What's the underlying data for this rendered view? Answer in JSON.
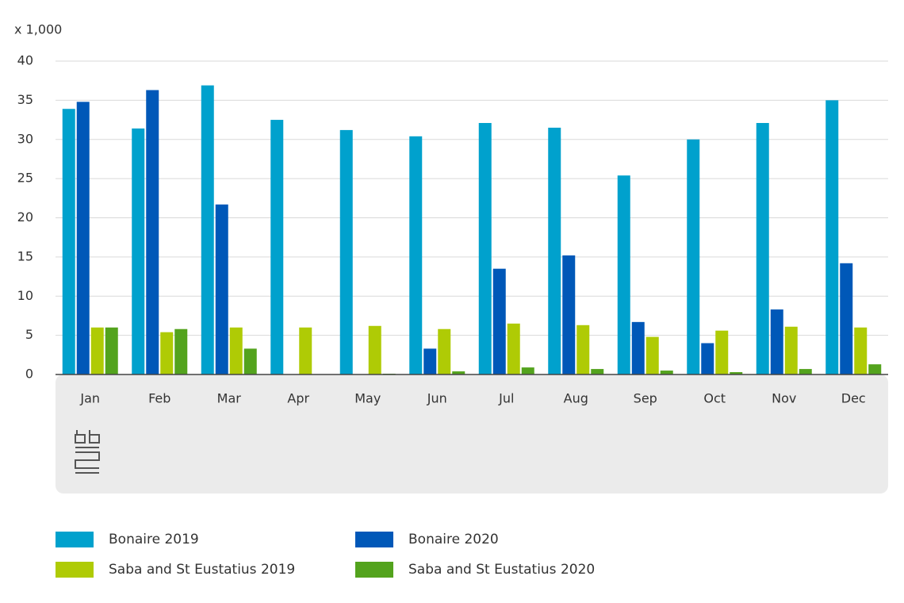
{
  "chart_data": {
    "type": "bar",
    "ylabel": "x 1,000",
    "categories": [
      "Jan",
      "Feb",
      "Mar",
      "Apr",
      "May",
      "Jun",
      "Jul",
      "Aug",
      "Sep",
      "Oct",
      "Nov",
      "Dec"
    ],
    "series": [
      {
        "name": "Bonaire 2019",
        "color": "#00a1cd",
        "values": [
          33.9,
          31.4,
          36.9,
          32.5,
          31.2,
          30.4,
          32.1,
          31.5,
          25.4,
          30.0,
          32.1,
          35.0
        ]
      },
      {
        "name": "Bonaire 2020",
        "color": "#0058b8",
        "values": [
          34.8,
          36.3,
          21.7,
          0,
          0,
          3.3,
          13.5,
          15.2,
          6.7,
          4.0,
          8.3,
          14.2
        ]
      },
      {
        "name": "Saba and St Eustatius 2019",
        "color": "#afcb05",
        "values": [
          6.0,
          5.4,
          6.0,
          6.0,
          6.2,
          5.8,
          6.5,
          6.3,
          4.8,
          5.6,
          6.1,
          6.0
        ]
      },
      {
        "name": "Saba and St Eustatius 2020",
        "color": "#53a31d",
        "values": [
          6.0,
          5.8,
          3.3,
          0,
          0.1,
          0.4,
          0.9,
          0.7,
          0.5,
          0.3,
          0.7,
          1.3
        ]
      }
    ],
    "ylim": [
      0,
      40
    ],
    "yticks": [
      0,
      5,
      10,
      15,
      20,
      25,
      30,
      35,
      40
    ],
    "grid": true
  }
}
